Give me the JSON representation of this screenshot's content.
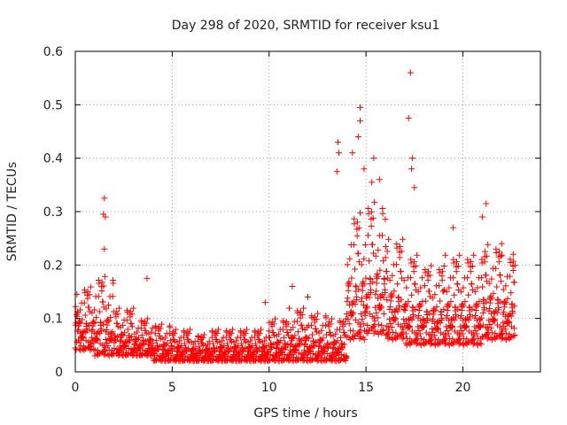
{
  "chart_data": {
    "type": "scatter",
    "title": "Day 298 of 2020, SRMTID for receiver ksu1",
    "xlabel": "GPS time / hours",
    "ylabel": "SRMTID / TECUs",
    "xlim": [
      0,
      24
    ],
    "ylim": [
      0,
      0.6
    ],
    "grid": true,
    "marker": "+",
    "x_ticks": [
      0,
      5,
      10,
      15,
      20
    ],
    "x_tick_labels": [
      "0",
      "5",
      "10",
      "15",
      "20"
    ],
    "y_ticks": [
      0,
      0.1,
      0.2,
      0.3,
      0.4,
      0.5,
      0.6
    ],
    "y_tick_labels": [
      "0",
      "0.1",
      "0.2",
      "0.3",
      "0.4",
      "0.5",
      "0.6"
    ],
    "colors": {
      "points": "#ff0000",
      "grid": "#a0a0a0",
      "axes": "#000000"
    },
    "series": [
      {
        "name": "SRMTID",
        "x_range": [
          0.0,
          22.7
        ],
        "envelope_note": "Dense point cloud approximated by per-hour value envelopes",
        "envelope": [
          {
            "hour": 0,
            "low": 0.04,
            "high": 0.16
          },
          {
            "hour": 1,
            "low": 0.03,
            "high": 0.18
          },
          {
            "hour": 2,
            "low": 0.03,
            "high": 0.12
          },
          {
            "hour": 3,
            "low": 0.03,
            "high": 0.1
          },
          {
            "hour": 4,
            "low": 0.02,
            "high": 0.09
          },
          {
            "hour": 5,
            "low": 0.02,
            "high": 0.08
          },
          {
            "hour": 6,
            "low": 0.02,
            "high": 0.07
          },
          {
            "hour": 7,
            "low": 0.02,
            "high": 0.08
          },
          {
            "hour": 8,
            "low": 0.02,
            "high": 0.08
          },
          {
            "hour": 9,
            "low": 0.02,
            "high": 0.08
          },
          {
            "hour": 10,
            "low": 0.02,
            "high": 0.1
          },
          {
            "hour": 11,
            "low": 0.02,
            "high": 0.12
          },
          {
            "hour": 12,
            "low": 0.02,
            "high": 0.11
          },
          {
            "hour": 13,
            "low": 0.02,
            "high": 0.1
          },
          {
            "hour": 14,
            "low": 0.06,
            "high": 0.3
          },
          {
            "hour": 15,
            "low": 0.07,
            "high": 0.32
          },
          {
            "hour": 16,
            "low": 0.06,
            "high": 0.25
          },
          {
            "hour": 17,
            "low": 0.05,
            "high": 0.22
          },
          {
            "hour": 18,
            "low": 0.05,
            "high": 0.2
          },
          {
            "hour": 19,
            "low": 0.05,
            "high": 0.22
          },
          {
            "hour": 20,
            "low": 0.05,
            "high": 0.22
          },
          {
            "hour": 21,
            "low": 0.06,
            "high": 0.24
          },
          {
            "hour": 22,
            "low": 0.06,
            "high": 0.22
          },
          {
            "hour": 23,
            "low": 0.07,
            "high": 0.2
          }
        ],
        "outliers": [
          [
            1.5,
            0.325
          ],
          [
            1.45,
            0.295
          ],
          [
            1.55,
            0.29
          ],
          [
            1.5,
            0.23
          ],
          [
            3.7,
            0.175
          ],
          [
            9.8,
            0.13
          ],
          [
            11.2,
            0.16
          ],
          [
            12.0,
            0.14
          ],
          [
            13.55,
            0.43
          ],
          [
            13.6,
            0.41
          ],
          [
            13.5,
            0.375
          ],
          [
            14.7,
            0.495
          ],
          [
            14.7,
            0.47
          ],
          [
            14.6,
            0.44
          ],
          [
            14.3,
            0.41
          ],
          [
            14.9,
            0.38
          ],
          [
            15.4,
            0.4
          ],
          [
            15.3,
            0.355
          ],
          [
            15.7,
            0.36
          ],
          [
            17.3,
            0.56
          ],
          [
            17.2,
            0.475
          ],
          [
            17.4,
            0.4
          ],
          [
            17.35,
            0.38
          ],
          [
            17.5,
            0.345
          ],
          [
            19.5,
            0.27
          ],
          [
            21.2,
            0.315
          ],
          [
            21.0,
            0.29
          ],
          [
            22.0,
            0.24
          ],
          [
            22.6,
            0.22
          ]
        ]
      }
    ]
  }
}
